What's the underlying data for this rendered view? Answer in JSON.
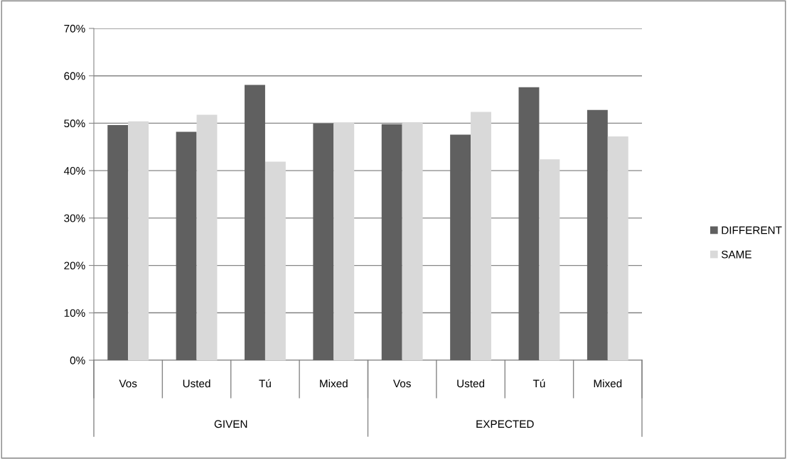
{
  "chart_data": {
    "type": "bar",
    "categories": [
      "Vos",
      "Usted",
      "Tú",
      "Mixed",
      "Vos",
      "Usted",
      "Tú",
      "Mixed"
    ],
    "series": [
      {
        "name": "DIFFERENT",
        "color": "#606060",
        "values": [
          49.6,
          48.2,
          58.1,
          49.9,
          49.8,
          47.6,
          57.6,
          52.8
        ]
      },
      {
        "name": "SAME",
        "color": "#d9d9d9",
        "values": [
          50.4,
          51.8,
          41.9,
          50.1,
          50.2,
          52.4,
          42.4,
          47.2
        ]
      }
    ],
    "annotations": [
      "GIVEN",
      "EXPECTED"
    ],
    "ylim": [
      0,
      70
    ],
    "yticks": [
      {
        "value": 0,
        "label": "0%"
      },
      {
        "value": 10,
        "label": "10%"
      },
      {
        "value": 20,
        "label": "20%"
      },
      {
        "value": 30,
        "label": "30%"
      },
      {
        "value": 40,
        "label": "40%"
      },
      {
        "value": 50,
        "label": "50%"
      },
      {
        "value": 60,
        "label": "60%"
      },
      {
        "value": 70,
        "label": "70%"
      }
    ],
    "grid": "y",
    "legend": "right"
  }
}
